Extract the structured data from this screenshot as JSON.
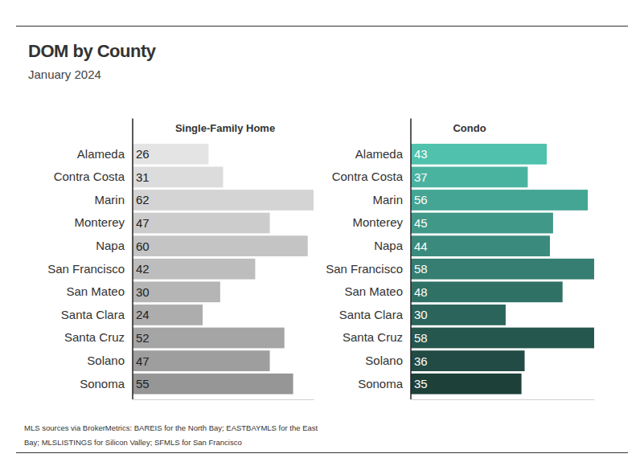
{
  "title": "DOM by County",
  "subtitle": "January 2024",
  "source": [
    "MLS sources via BrokerMetrics: BAREIS for the North Bay; EASTBAYMLS for the East",
    "Bay; MLSLISTINGS for Silicon Valley; SFMLS for San Francisco"
  ],
  "chart_data": [
    {
      "type": "bar",
      "orientation": "horizontal",
      "title": "Single-Family Home",
      "categories": [
        "Alameda",
        "Contra Costa",
        "Marin",
        "Monterey",
        "Napa",
        "San Francisco",
        "San Mateo",
        "Santa Clara",
        "Santa Cruz",
        "Solano",
        "Sonoma"
      ],
      "values": [
        26,
        31,
        62,
        47,
        60,
        42,
        30,
        24,
        52,
        47,
        55
      ],
      "colors": [
        "#e4e4e4",
        "#dcdcdc",
        "#d4d4d4",
        "#cccccc",
        "#c4c4c4",
        "#bdbdbd",
        "#b5b5b5",
        "#adadad",
        "#a5a5a5",
        "#9e9e9e",
        "#969696"
      ],
      "xlim": [
        0,
        62
      ],
      "data_labels": true,
      "tick_labels": "y"
    },
    {
      "type": "bar",
      "orientation": "horizontal",
      "title": "Condo",
      "categories": [
        "Alameda",
        "Contra Costa",
        "Marin",
        "Monterey",
        "Napa",
        "San Francisco",
        "San Mateo",
        "Santa Clara",
        "Santa Cruz",
        "Solano",
        "Sonoma"
      ],
      "values": [
        43,
        37,
        56,
        45,
        44,
        58,
        48,
        30,
        58,
        36,
        35
      ],
      "colors": [
        "#4fc1ac",
        "#4ab3a0",
        "#44a594",
        "#3f9888",
        "#3a8b7d",
        "#357e71",
        "#307166",
        "#2b645a",
        "#26574f",
        "#214b44",
        "#1d4039"
      ],
      "xlim": [
        0,
        58
      ],
      "data_labels": true,
      "tick_labels": "y"
    }
  ]
}
